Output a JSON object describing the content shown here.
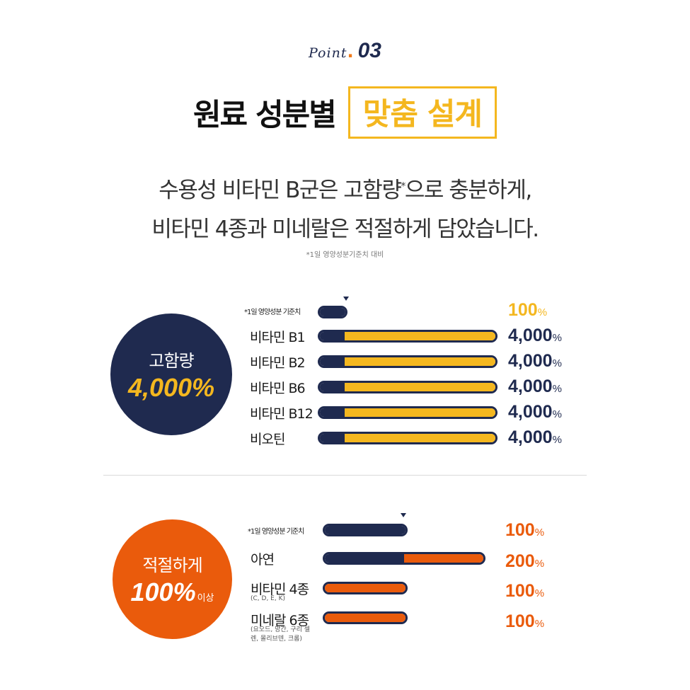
{
  "header": {
    "point_word": "Point",
    "point_number": "03",
    "title_main": "원료 성분별",
    "title_highlight": "맞춤 설계",
    "desc_line1_a": "수용성 비타민 B군은 고함량",
    "desc_line1_sup": "*",
    "desc_line1_b": "으로 충분하게,",
    "desc_line2": "비타민 4종과 미네랄은 적절하게 담았습니다.",
    "footnote": "*1일 영양성분기준치 대비"
  },
  "section_high": {
    "circle_label": "고함량",
    "circle_value": "4,000%",
    "reference": {
      "label": "*1일 영양성분 기준치",
      "percent": "100",
      "unit": "%"
    },
    "rows": [
      {
        "label": "비타민 B1",
        "percent": "4,000",
        "unit": "%",
        "level": 1.0
      },
      {
        "label": "비타민 B2",
        "percent": "4,000",
        "unit": "%",
        "level": 1.0
      },
      {
        "label": "비타민 B6",
        "percent": "4,000",
        "unit": "%",
        "level": 1.0
      },
      {
        "label": "비타민 B12",
        "percent": "4,000",
        "unit": "%",
        "level": 1.0
      },
      {
        "label": "비오틴",
        "percent": "4,000",
        "unit": "%",
        "level": 1.0
      }
    ],
    "colors": {
      "navy": "#1f2a4f",
      "yellow": "#f4b71f"
    }
  },
  "section_adequate": {
    "circle_label": "적절하게",
    "circle_value": "100%",
    "circle_suffix": "이상",
    "reference": {
      "label": "*1일 영양성분 기준치",
      "percent": "100",
      "unit": "%"
    },
    "rows": [
      {
        "label": "아연",
        "sub": "",
        "percent": "200",
        "unit": "%",
        "level": 1.0
      },
      {
        "label": "비타민 4종",
        "sub": "(C, D, E, K)",
        "percent": "100",
        "unit": "%",
        "level": 0.5
      },
      {
        "label": "미네랄 6종",
        "sub": "(요오드, 망간, 구리 셀렌, 몰리브덴, 크롬)",
        "percent": "100",
        "unit": "%",
        "level": 0.5
      }
    ],
    "colors": {
      "navy": "#1f2a4f",
      "orange": "#ea5b0c"
    }
  }
}
